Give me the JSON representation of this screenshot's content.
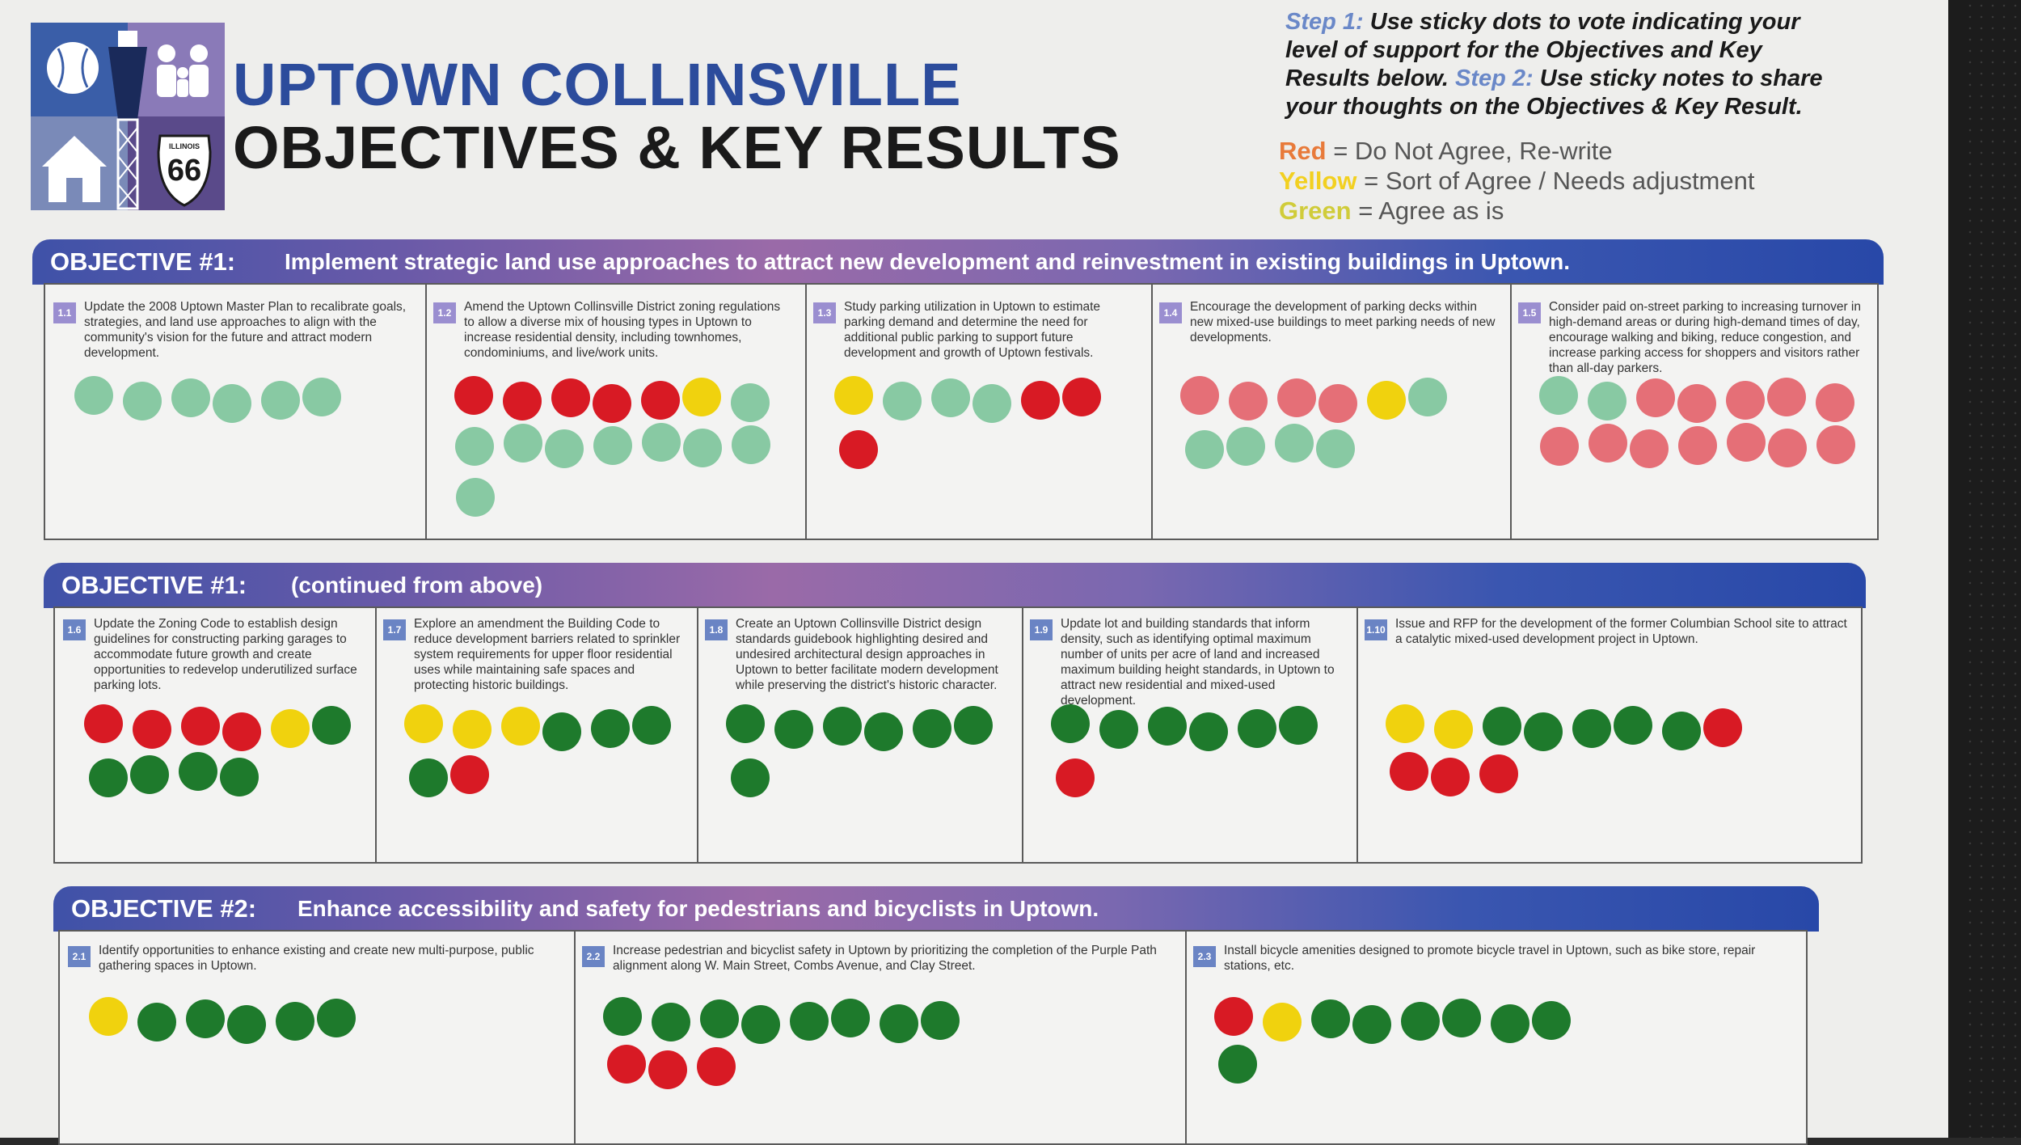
{
  "header": {
    "title_line1": "UPTOWN COLLINSVILLE",
    "title_line2": "OBJECTIVES & KEY RESULTS",
    "logo_badge_state": "ILLINOIS",
    "logo_badge_route": "66"
  },
  "instructions": {
    "step1_label": "Step 1:",
    "step1_text": "Use sticky dots to vote indicating your level of support for the Objectives and Key Results below.",
    "step2_label": "Step 2:",
    "step2_text": "Use sticky notes to share your thoughts on the Objectives & Key Result."
  },
  "legend": {
    "red_label": "Red",
    "red_text": "= Do Not Agree, Re-write",
    "yellow_label": "Yellow",
    "yellow_text": "= Sort of Agree / Needs adjustment",
    "green_label": "Green",
    "green_text": "= Agree as is",
    "colors": {
      "red": "#d81a24",
      "yellow": "#f0d20e",
      "green": "#1e7a2c"
    }
  },
  "objectives": [
    {
      "label": "OBJECTIVE #1:",
      "text": "Implement strategic land use approaches to attract new development and reinvestment in existing buildings in Uptown.",
      "results": [
        {
          "id": "1.1",
          "text": "Update the 2008 Uptown Master Plan to recalibrate goals, strategies, and land use approaches to align with the community's vision for the future and attract modern development.",
          "votes": {
            "green": 6,
            "yellow": 0,
            "red": 0
          }
        },
        {
          "id": "1.2",
          "text": "Amend the Uptown Collinsville District zoning regulations to allow a diverse mix of housing types in Uptown to increase residential density, including townhomes, condominiums, and live/work units.",
          "votes": {
            "green": 9,
            "yellow": 1,
            "red": 5
          }
        },
        {
          "id": "1.3",
          "text": "Study parking utilization in Uptown to estimate parking demand and determine the need for additional public parking to support future development and growth of Uptown festivals.",
          "votes": {
            "green": 3,
            "yellow": 1,
            "red": 3
          }
        },
        {
          "id": "1.4",
          "text": "Encourage the development of parking decks within new mixed-use buildings to meet parking needs of new developments.",
          "votes": {
            "green": 5,
            "yellow": 1,
            "red": 4
          }
        },
        {
          "id": "1.5",
          "text": "Consider paid on-street parking to increasing turnover in high-demand areas or during high-demand times of day, encourage walking and biking, reduce congestion, and increase parking access for shoppers and visitors rather than all-day parkers.",
          "votes": {
            "green": 2,
            "yellow": 0,
            "red": 12
          }
        }
      ]
    },
    {
      "label": "OBJECTIVE #1:",
      "text": "(continued from above)",
      "results": [
        {
          "id": "1.6",
          "text": "Update the Zoning Code to establish design guidelines for constructing parking garages to accommodate future growth and create opportunities to redevelop underutilized surface parking lots.",
          "votes": {
            "green": 5,
            "yellow": 1,
            "red": 4
          }
        },
        {
          "id": "1.7",
          "text": "Explore an amendment the Building Code to reduce development barriers related to sprinkler system requirements for upper floor residential uses while maintaining safe spaces and protecting historic buildings.",
          "votes": {
            "green": 4,
            "yellow": 3,
            "red": 1
          }
        },
        {
          "id": "1.8",
          "text": "Create an Uptown Collinsville District design standards guidebook highlighting desired and undesired architectural design approaches in Uptown to better facilitate modern development while preserving the district's historic character.",
          "votes": {
            "green": 7,
            "yellow": 0,
            "red": 0
          }
        },
        {
          "id": "1.9",
          "text": "Update lot and building standards that inform density, such as identifying optimal maximum number of units per acre of land and increased maximum building height standards, in Uptown to attract new residential and mixed-used development.",
          "votes": {
            "green": 6,
            "yellow": 0,
            "red": 1
          }
        },
        {
          "id": "1.10",
          "text": "Issue and RFP for the development of the former Columbian School site to attract a catalytic mixed-used development project in Uptown.",
          "votes": {
            "green": 5,
            "yellow": 2,
            "red": 4
          }
        }
      ]
    },
    {
      "label": "OBJECTIVE #2:",
      "text": "Enhance accessibility and safety for pedestrians and bicyclists in Uptown.",
      "results": [
        {
          "id": "2.1",
          "text": "Identify opportunities to enhance existing and create new multi-purpose, public gathering spaces in Uptown.",
          "votes": {
            "green": 5,
            "yellow": 1,
            "red": 0
          }
        },
        {
          "id": "2.2",
          "text": "Increase pedestrian and bicyclist safety in Uptown by prioritizing the completion of the Purple Path alignment along W. Main Street, Combs Avenue, and Clay Street.",
          "votes": {
            "green": 8,
            "yellow": 0,
            "red": 3
          }
        },
        {
          "id": "2.3",
          "text": "Install bicycle amenities designed to promote bicycle travel in Uptown, such as bike store, repair stations, etc.",
          "votes": {
            "green": 7,
            "yellow": 1,
            "red": 1
          }
        }
      ]
    }
  ]
}
